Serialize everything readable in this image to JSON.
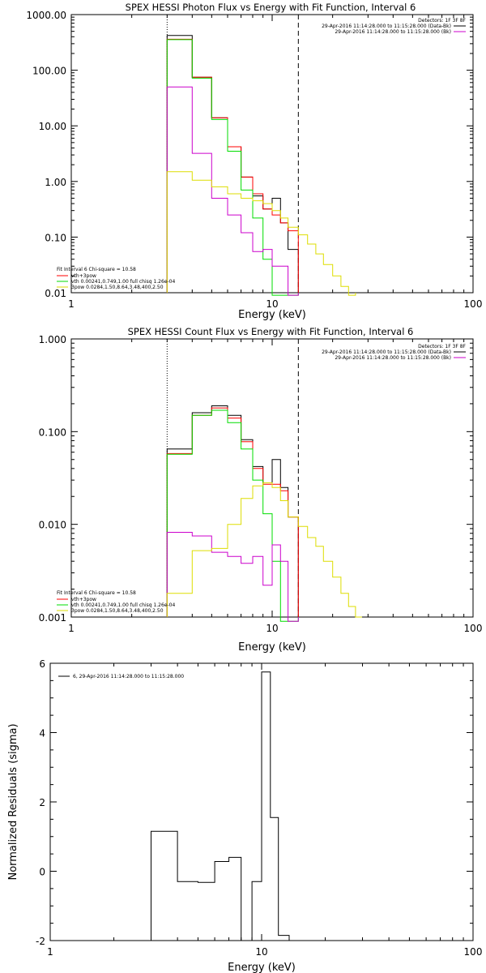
{
  "chart_data": [
    {
      "type": "line",
      "title": "SPEX HESSI Photon Flux vs Energy with Fit Function, Interval 6",
      "xlabel": "Energy (keV)",
      "ylabel": "",
      "xscale": "log",
      "yscale": "log",
      "xlim": [
        1,
        100
      ],
      "ylim": [
        0.01,
        1000
      ],
      "x_ticks": [
        "1",
        "10",
        "100"
      ],
      "y_ticks": [
        "0.01",
        "0.10",
        "1.00",
        "10.00",
        "100.00",
        "1000.00"
      ],
      "vlines": [
        {
          "x": 3,
          "style": "dotted"
        },
        {
          "x": 13.5,
          "style": "dashed"
        }
      ],
      "detectors": "Detectors: 1F 3F 8F",
      "legend_tr": [
        {
          "text": "29-Apr-2016 11:14:28.000 to 11:15:28.000 (Data-Bk)",
          "color": "#000000"
        },
        {
          "text": "29-Apr-2016 11:14:28.000 to 11:15:28.000 (Bk)",
          "color": "#cc00cc"
        }
      ],
      "legend_bl_title": "Fit Interval 6   Chi-square = 10.58",
      "legend_bl": [
        {
          "text": "vth+3pow",
          "color": "#ff0000"
        },
        {
          "text": "vth 0.00241,0.749,1.00  full chisq 1.26e-04",
          "color": "#00dd00"
        },
        {
          "text": "3pow 0.0284,1.50,8.64,3.48,400,2.50",
          "color": "#dddd00"
        }
      ],
      "series": [
        {
          "name": "Data-Bk",
          "color": "#000000",
          "edges": [
            3,
            4,
            5,
            6,
            7,
            8,
            9,
            10,
            11,
            12,
            13.5
          ],
          "values": [
            420,
            75,
            14,
            4.2,
            1.2,
            0.55,
            0.32,
            0.5,
            0.18,
            0.06
          ]
        },
        {
          "name": "vth+3pow",
          "color": "#ff0000",
          "edges": [
            3,
            4,
            5,
            6,
            7,
            8,
            9,
            10,
            11,
            12,
            13.5
          ],
          "values": [
            360,
            75,
            14,
            4.2,
            1.2,
            0.6,
            0.32,
            0.25,
            0.18,
            0.13
          ]
        },
        {
          "name": "vth",
          "color": "#00dd00",
          "edges": [
            3,
            4,
            5,
            6,
            7,
            8,
            9,
            10,
            11,
            12,
            13.5
          ],
          "values": [
            355,
            72,
            13,
            3.5,
            0.7,
            0.22,
            0.04,
            0.009,
            0.009,
            0.009
          ]
        },
        {
          "name": "Bk",
          "color": "#cc00cc",
          "edges": [
            3,
            4,
            5,
            6,
            7,
            8,
            9,
            10,
            11,
            12,
            13.5
          ],
          "values": [
            50,
            3.2,
            0.5,
            0.25,
            0.12,
            0.055,
            0.06,
            0.03,
            0.03,
            0.009
          ]
        },
        {
          "name": "3pow",
          "color": "#dddd00",
          "edges": [
            3,
            4,
            5,
            6,
            7,
            8,
            9,
            10,
            11,
            12,
            13.5,
            15,
            16.5,
            18,
            20,
            22,
            24,
            26
          ],
          "values": [
            1.5,
            1.05,
            0.8,
            0.6,
            0.5,
            0.45,
            0.4,
            0.3,
            0.22,
            0.15,
            0.11,
            0.075,
            0.05,
            0.032,
            0.02,
            0.013,
            0.009
          ]
        }
      ]
    },
    {
      "type": "line",
      "title": "SPEX HESSI Count Flux vs Energy with Fit Function, Interval 6",
      "xlabel": "Energy (keV)",
      "ylabel": "",
      "xscale": "log",
      "yscale": "log",
      "xlim": [
        1,
        100
      ],
      "ylim": [
        0.001,
        1
      ],
      "x_ticks": [
        "1",
        "10",
        "100"
      ],
      "y_ticks": [
        "0.001",
        "0.010",
        "0.100",
        "1.000"
      ],
      "vlines": [
        {
          "x": 3,
          "style": "dotted"
        },
        {
          "x": 13.5,
          "style": "dashed"
        }
      ],
      "detectors": "Detectors: 1F 3F 8F",
      "legend_tr": [
        {
          "text": "29-Apr-2016 11:14:28.000 to 11:15:28.000 (Data-Bk)",
          "color": "#000000"
        },
        {
          "text": "29-Apr-2016 11:14:28.000 to 11:15:28.000 (Bk)",
          "color": "#cc00cc"
        }
      ],
      "legend_bl_title": "Fit Interval 6   Chi-square = 10.58",
      "legend_bl": [
        {
          "text": "vth+3pow",
          "color": "#ff0000"
        },
        {
          "text": "vth 0.00241,0.749,1.00  full chisq 1.26e-04",
          "color": "#00dd00"
        },
        {
          "text": "3pow 0.0284,1.50,8.64,3.48,400,2.50",
          "color": "#dddd00"
        }
      ],
      "series": [
        {
          "name": "Data-Bk",
          "color": "#000000",
          "edges": [
            3,
            4,
            5,
            6,
            7,
            8,
            9,
            10,
            11,
            12,
            13.5
          ],
          "values": [
            0.065,
            0.16,
            0.19,
            0.15,
            0.082,
            0.042,
            0.028,
            0.05,
            0.025,
            0.012
          ]
        },
        {
          "name": "vth+3pow",
          "color": "#ff0000",
          "edges": [
            3,
            4,
            5,
            6,
            7,
            8,
            9,
            10,
            11,
            12,
            13.5
          ],
          "values": [
            0.058,
            0.15,
            0.18,
            0.14,
            0.078,
            0.04,
            0.027,
            0.027,
            0.023,
            0.012
          ]
        },
        {
          "name": "vth",
          "color": "#00dd00",
          "edges": [
            3,
            4,
            5,
            6,
            7,
            8,
            9,
            10,
            11,
            12,
            13.5
          ],
          "values": [
            0.057,
            0.15,
            0.17,
            0.125,
            0.065,
            0.03,
            0.013,
            0.004,
            0.0009,
            0.0009
          ]
        },
        {
          "name": "Bk",
          "color": "#cc00cc",
          "edges": [
            3,
            4,
            5,
            6,
            7,
            8,
            9,
            10,
            11,
            12,
            13.5
          ],
          "values": [
            0.0082,
            0.0075,
            0.005,
            0.0045,
            0.0038,
            0.0045,
            0.0022,
            0.006,
            0.004,
            0.0009
          ]
        },
        {
          "name": "3pow",
          "color": "#dddd00",
          "edges": [
            3,
            4,
            5,
            6,
            7,
            8,
            9,
            10,
            11,
            12,
            13.5,
            15,
            16.5,
            18,
            20,
            22,
            24,
            26,
            28
          ],
          "values": [
            0.0018,
            0.0052,
            0.0055,
            0.01,
            0.019,
            0.026,
            0.028,
            0.025,
            0.018,
            0.012,
            0.0095,
            0.0072,
            0.0058,
            0.004,
            0.0027,
            0.0018,
            0.0013,
            0.001
          ]
        }
      ]
    },
    {
      "type": "line",
      "title": "",
      "xlabel": "Energy (keV)",
      "ylabel": "Normalized Residuals (sigma)",
      "xscale": "log",
      "yscale": "linear",
      "xlim": [
        1,
        100
      ],
      "ylim": [
        -2,
        6
      ],
      "x_ticks": [
        "1",
        "10",
        "100"
      ],
      "y_ticks": [
        "-2",
        "0",
        "2",
        "4",
        "6"
      ],
      "legend_tl": [
        {
          "text": "6, 29-Apr-2016 11:14:28.000 to 11:15:28.000",
          "color": "#000000"
        }
      ],
      "series": [
        {
          "name": "6, 29-Apr-2016 11:14:28.000 to 11:15:28.000",
          "color": "#000000",
          "edges": [
            3,
            4,
            5,
            6,
            7,
            8,
            9,
            10,
            11,
            12,
            13.5
          ],
          "values": [
            1.15,
            -0.3,
            -0.32,
            0.28,
            0.4,
            -2,
            -0.3,
            5.75,
            1.55,
            -1.85
          ]
        }
      ]
    }
  ]
}
